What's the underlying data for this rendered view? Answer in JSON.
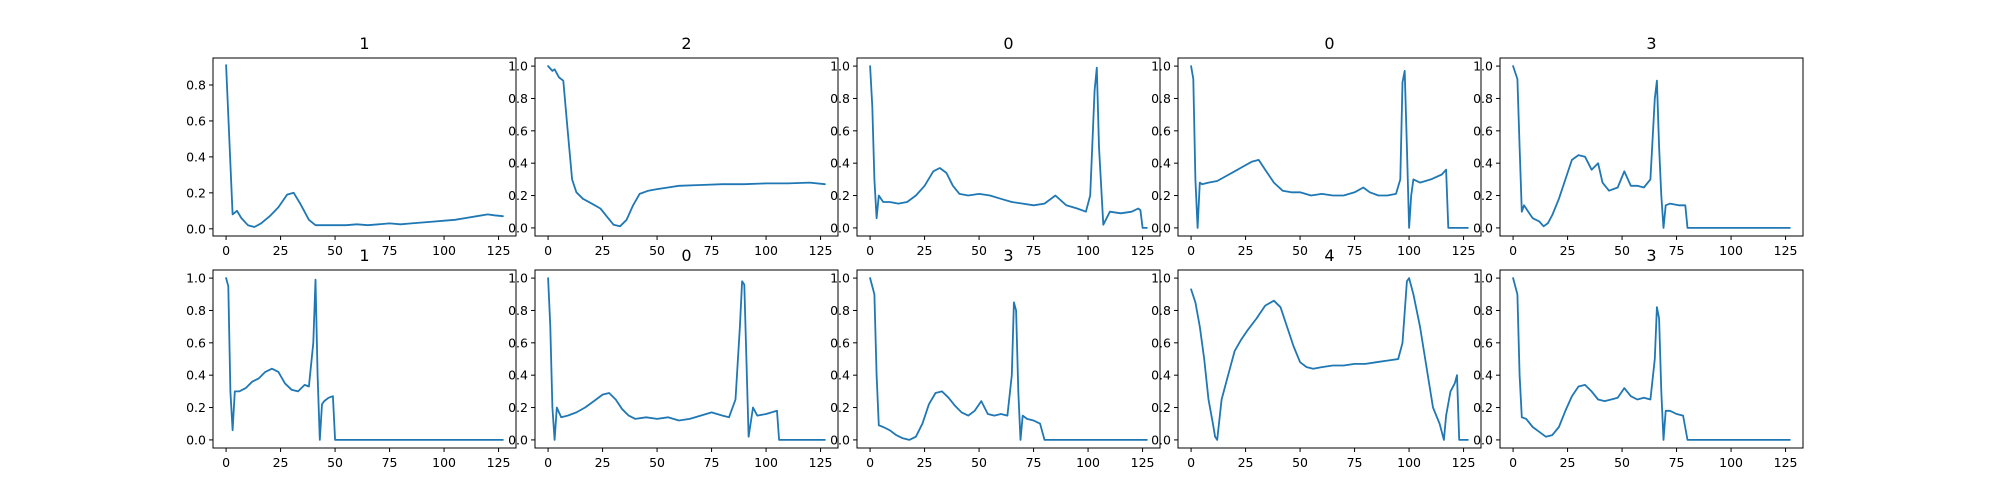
{
  "colors": {
    "line": "#1f77b4",
    "axes": "#000000",
    "background": "#ffffff"
  },
  "chart_data": [
    {
      "type": "line",
      "title": "1",
      "xlim": [
        -6,
        133
      ],
      "ylim": [
        -0.04,
        0.95
      ],
      "xticks": [
        0,
        25,
        50,
        75,
        100,
        125
      ],
      "yticks": [
        0.0,
        0.2,
        0.4,
        0.6,
        0.8
      ],
      "ytick_labels": [
        "0.0",
        "0.2",
        "0.4",
        "0.6",
        "0.8"
      ],
      "x": [
        0,
        3,
        5,
        7,
        10,
        13,
        16,
        20,
        24,
        28,
        31,
        34,
        38,
        41,
        45,
        50,
        55,
        60,
        65,
        70,
        75,
        80,
        85,
        90,
        95,
        100,
        105,
        110,
        115,
        120,
        123,
        127
      ],
      "y": [
        0.91,
        0.08,
        0.1,
        0.06,
        0.02,
        0.01,
        0.03,
        0.07,
        0.12,
        0.19,
        0.2,
        0.14,
        0.05,
        0.02,
        0.02,
        0.02,
        0.02,
        0.025,
        0.02,
        0.025,
        0.03,
        0.025,
        0.03,
        0.035,
        0.04,
        0.045,
        0.05,
        0.06,
        0.07,
        0.08,
        0.075,
        0.07
      ]
    },
    {
      "type": "line",
      "title": "2",
      "xlim": [
        -6,
        133
      ],
      "ylim": [
        -0.05,
        1.05
      ],
      "xticks": [
        0,
        25,
        50,
        75,
        100,
        125
      ],
      "yticks": [
        0.0,
        0.2,
        0.4,
        0.6,
        0.8,
        1.0
      ],
      "ytick_labels": [
        "0.0",
        "0.2",
        "0.4",
        "0.6",
        "0.8",
        "1.0"
      ],
      "x": [
        0,
        2,
        3,
        5,
        7,
        9,
        11,
        13,
        16,
        20,
        24,
        27,
        30,
        33,
        36,
        39,
        42,
        46,
        50,
        55,
        60,
        70,
        80,
        90,
        100,
        110,
        120,
        127
      ],
      "y": [
        1.0,
        0.97,
        0.98,
        0.93,
        0.91,
        0.6,
        0.3,
        0.22,
        0.18,
        0.15,
        0.12,
        0.07,
        0.02,
        0.01,
        0.05,
        0.14,
        0.21,
        0.23,
        0.24,
        0.25,
        0.26,
        0.265,
        0.27,
        0.27,
        0.275,
        0.275,
        0.28,
        0.27
      ]
    },
    {
      "type": "line",
      "title": "0",
      "xlim": [
        -6,
        133
      ],
      "ylim": [
        -0.05,
        1.05
      ],
      "xticks": [
        0,
        25,
        50,
        75,
        100,
        125
      ],
      "yticks": [
        0.0,
        0.2,
        0.4,
        0.6,
        0.8,
        1.0
      ],
      "ytick_labels": [
        "0.0",
        "0.2",
        "0.4",
        "0.6",
        "0.8",
        "1.0"
      ],
      "x": [
        0,
        1,
        2,
        3,
        4,
        6,
        9,
        13,
        17,
        21,
        25,
        29,
        32,
        35,
        38,
        41,
        45,
        50,
        55,
        60,
        65,
        70,
        75,
        80,
        85,
        90,
        95,
        99,
        101,
        103,
        104,
        105,
        107,
        110,
        115,
        120,
        123,
        124,
        125,
        127
      ],
      "y": [
        1.0,
        0.75,
        0.3,
        0.06,
        0.2,
        0.16,
        0.16,
        0.15,
        0.16,
        0.2,
        0.26,
        0.35,
        0.37,
        0.34,
        0.26,
        0.21,
        0.2,
        0.21,
        0.2,
        0.18,
        0.16,
        0.15,
        0.14,
        0.15,
        0.2,
        0.14,
        0.12,
        0.1,
        0.2,
        0.85,
        0.99,
        0.5,
        0.02,
        0.1,
        0.09,
        0.1,
        0.12,
        0.11,
        0.0,
        0.0
      ]
    },
    {
      "type": "line",
      "title": "0",
      "xlim": [
        -6,
        133
      ],
      "ylim": [
        -0.05,
        1.05
      ],
      "xticks": [
        0,
        25,
        50,
        75,
        100,
        125
      ],
      "yticks": [
        0.0,
        0.2,
        0.4,
        0.6,
        0.8,
        1.0
      ],
      "ytick_labels": [
        "0.0",
        "0.2",
        "0.4",
        "0.6",
        "0.8",
        "1.0"
      ],
      "x": [
        0,
        1,
        2,
        3,
        4,
        5,
        8,
        12,
        16,
        20,
        24,
        28,
        31,
        34,
        38,
        42,
        46,
        50,
        55,
        60,
        65,
        70,
        75,
        79,
        82,
        86,
        90,
        94,
        96,
        97,
        98,
        99,
        100,
        101,
        102,
        105,
        110,
        115,
        117,
        118,
        120,
        127
      ],
      "y": [
        1.0,
        0.92,
        0.3,
        0.0,
        0.28,
        0.27,
        0.28,
        0.29,
        0.32,
        0.35,
        0.38,
        0.41,
        0.42,
        0.36,
        0.28,
        0.23,
        0.22,
        0.22,
        0.2,
        0.21,
        0.2,
        0.2,
        0.22,
        0.25,
        0.22,
        0.2,
        0.2,
        0.21,
        0.3,
        0.9,
        0.97,
        0.5,
        0.0,
        0.2,
        0.3,
        0.28,
        0.3,
        0.33,
        0.36,
        0.0,
        0.0,
        0.0
      ]
    },
    {
      "type": "line",
      "title": "3",
      "xlim": [
        -6,
        133
      ],
      "ylim": [
        -0.05,
        1.05
      ],
      "xticks": [
        0,
        25,
        50,
        75,
        100,
        125
      ],
      "yticks": [
        0.0,
        0.2,
        0.4,
        0.6,
        0.8,
        1.0
      ],
      "ytick_labels": [
        "0.0",
        "0.2",
        "0.4",
        "0.6",
        "0.8",
        "1.0"
      ],
      "x": [
        0,
        2,
        3,
        4,
        5,
        7,
        9,
        12,
        14,
        16,
        18,
        21,
        24,
        27,
        30,
        33,
        36,
        39,
        41,
        44,
        48,
        51,
        54,
        57,
        60,
        63,
        65,
        66,
        67,
        68,
        69,
        70,
        72,
        76,
        79,
        80,
        85,
        100,
        127
      ],
      "y": [
        1.0,
        0.92,
        0.5,
        0.1,
        0.14,
        0.1,
        0.06,
        0.04,
        0.01,
        0.03,
        0.08,
        0.18,
        0.3,
        0.42,
        0.45,
        0.44,
        0.36,
        0.4,
        0.28,
        0.23,
        0.25,
        0.35,
        0.26,
        0.26,
        0.25,
        0.3,
        0.8,
        0.91,
        0.5,
        0.2,
        0.0,
        0.14,
        0.15,
        0.14,
        0.14,
        0.0,
        0.0,
        0.0,
        0.0
      ]
    },
    {
      "type": "line",
      "title": "1",
      "xlim": [
        -6,
        133
      ],
      "ylim": [
        -0.05,
        1.05
      ],
      "xticks": [
        0,
        25,
        50,
        75,
        100,
        125
      ],
      "yticks": [
        0.0,
        0.2,
        0.4,
        0.6,
        0.8,
        1.0
      ],
      "ytick_labels": [
        "0.0",
        "0.2",
        "0.4",
        "0.6",
        "0.8",
        "1.0"
      ],
      "x": [
        0,
        1,
        2,
        3,
        4,
        6,
        9,
        12,
        15,
        18,
        21,
        24,
        27,
        30,
        33,
        36,
        38,
        40,
        41,
        42,
        43,
        44,
        45,
        47,
        49,
        50,
        52,
        60,
        80,
        100,
        127
      ],
      "y": [
        1.0,
        0.95,
        0.3,
        0.06,
        0.3,
        0.3,
        0.32,
        0.36,
        0.38,
        0.42,
        0.44,
        0.42,
        0.35,
        0.31,
        0.3,
        0.34,
        0.33,
        0.6,
        0.99,
        0.4,
        0.0,
        0.22,
        0.24,
        0.26,
        0.27,
        0.0,
        0.0,
        0.0,
        0.0,
        0.0,
        0.0
      ]
    },
    {
      "type": "line",
      "title": "0",
      "xlim": [
        -6,
        133
      ],
      "ylim": [
        -0.05,
        1.05
      ],
      "xticks": [
        0,
        25,
        50,
        75,
        100,
        125
      ],
      "yticks": [
        0.0,
        0.2,
        0.4,
        0.6,
        0.8,
        1.0
      ],
      "ytick_labels": [
        "0.0",
        "0.2",
        "0.4",
        "0.6",
        "0.8",
        "1.0"
      ],
      "x": [
        0,
        1,
        2,
        3,
        4,
        6,
        9,
        13,
        17,
        21,
        25,
        28,
        31,
        34,
        37,
        40,
        45,
        50,
        55,
        60,
        65,
        70,
        75,
        80,
        83,
        86,
        88,
        89,
        90,
        91,
        92,
        94,
        96,
        100,
        105,
        106,
        110,
        127
      ],
      "y": [
        1.0,
        0.7,
        0.2,
        0.0,
        0.2,
        0.14,
        0.15,
        0.17,
        0.2,
        0.24,
        0.28,
        0.29,
        0.25,
        0.19,
        0.15,
        0.13,
        0.14,
        0.13,
        0.14,
        0.12,
        0.13,
        0.15,
        0.17,
        0.15,
        0.14,
        0.25,
        0.7,
        0.98,
        0.96,
        0.5,
        0.02,
        0.2,
        0.15,
        0.16,
        0.18,
        0.0,
        0.0,
        0.0
      ]
    },
    {
      "type": "line",
      "title": "3",
      "xlim": [
        -6,
        133
      ],
      "ylim": [
        -0.05,
        1.05
      ],
      "xticks": [
        0,
        25,
        50,
        75,
        100,
        125
      ],
      "yticks": [
        0.0,
        0.2,
        0.4,
        0.6,
        0.8,
        1.0
      ],
      "ytick_labels": [
        "0.0",
        "0.2",
        "0.4",
        "0.6",
        "0.8",
        "1.0"
      ],
      "x": [
        0,
        2,
        3,
        4,
        6,
        9,
        12,
        15,
        18,
        21,
        24,
        27,
        30,
        33,
        36,
        39,
        42,
        45,
        48,
        51,
        54,
        57,
        60,
        63,
        65,
        66,
        67,
        68,
        69,
        70,
        72,
        75,
        78,
        80,
        85,
        100,
        127
      ],
      "y": [
        1.0,
        0.9,
        0.4,
        0.09,
        0.08,
        0.06,
        0.03,
        0.01,
        0.0,
        0.02,
        0.1,
        0.22,
        0.29,
        0.3,
        0.26,
        0.21,
        0.17,
        0.15,
        0.18,
        0.24,
        0.16,
        0.15,
        0.16,
        0.15,
        0.4,
        0.85,
        0.8,
        0.3,
        0.0,
        0.15,
        0.13,
        0.12,
        0.1,
        0.0,
        0.0,
        0.0,
        0.0
      ]
    },
    {
      "type": "line",
      "title": "4",
      "xlim": [
        -6,
        133
      ],
      "ylim": [
        -0.05,
        1.05
      ],
      "xticks": [
        0,
        25,
        50,
        75,
        100,
        125
      ],
      "yticks": [
        0.0,
        0.2,
        0.4,
        0.6,
        0.8,
        1.0
      ],
      "ytick_labels": [
        "0.0",
        "0.2",
        "0.4",
        "0.6",
        "0.8",
        "1.0"
      ],
      "x": [
        0,
        2,
        4,
        6,
        8,
        10,
        11,
        12,
        14,
        17,
        20,
        23,
        26,
        30,
        34,
        38,
        41,
        44,
        47,
        50,
        53,
        56,
        60,
        65,
        70,
        75,
        80,
        85,
        90,
        95,
        97,
        99,
        100,
        102,
        105,
        108,
        111,
        114,
        116,
        117,
        119,
        121,
        122,
        123,
        125,
        127
      ],
      "y": [
        0.93,
        0.85,
        0.7,
        0.5,
        0.25,
        0.1,
        0.02,
        0.0,
        0.25,
        0.4,
        0.55,
        0.62,
        0.68,
        0.75,
        0.83,
        0.86,
        0.82,
        0.7,
        0.58,
        0.48,
        0.45,
        0.44,
        0.45,
        0.46,
        0.46,
        0.47,
        0.47,
        0.48,
        0.49,
        0.5,
        0.6,
        0.98,
        1.0,
        0.9,
        0.7,
        0.45,
        0.2,
        0.1,
        0.0,
        0.15,
        0.3,
        0.35,
        0.4,
        0.0,
        0.0,
        0.0
      ]
    },
    {
      "type": "line",
      "title": "3",
      "xlim": [
        -6,
        133
      ],
      "ylim": [
        -0.05,
        1.05
      ],
      "xticks": [
        0,
        25,
        50,
        75,
        100,
        125
      ],
      "yticks": [
        0.0,
        0.2,
        0.4,
        0.6,
        0.8,
        1.0
      ],
      "ytick_labels": [
        "0.0",
        "0.2",
        "0.4",
        "0.6",
        "0.8",
        "1.0"
      ],
      "x": [
        0,
        2,
        3,
        4,
        6,
        9,
        12,
        15,
        18,
        21,
        24,
        27,
        30,
        33,
        36,
        39,
        42,
        45,
        48,
        51,
        54,
        57,
        60,
        63,
        65,
        66,
        67,
        68,
        69,
        70,
        72,
        75,
        78,
        80,
        85,
        100,
        127
      ],
      "y": [
        1.0,
        0.9,
        0.4,
        0.14,
        0.13,
        0.08,
        0.05,
        0.02,
        0.03,
        0.08,
        0.18,
        0.27,
        0.33,
        0.34,
        0.3,
        0.25,
        0.24,
        0.25,
        0.26,
        0.32,
        0.27,
        0.25,
        0.26,
        0.25,
        0.5,
        0.82,
        0.75,
        0.3,
        0.0,
        0.18,
        0.18,
        0.16,
        0.15,
        0.0,
        0.0,
        0.0,
        0.0
      ]
    }
  ]
}
